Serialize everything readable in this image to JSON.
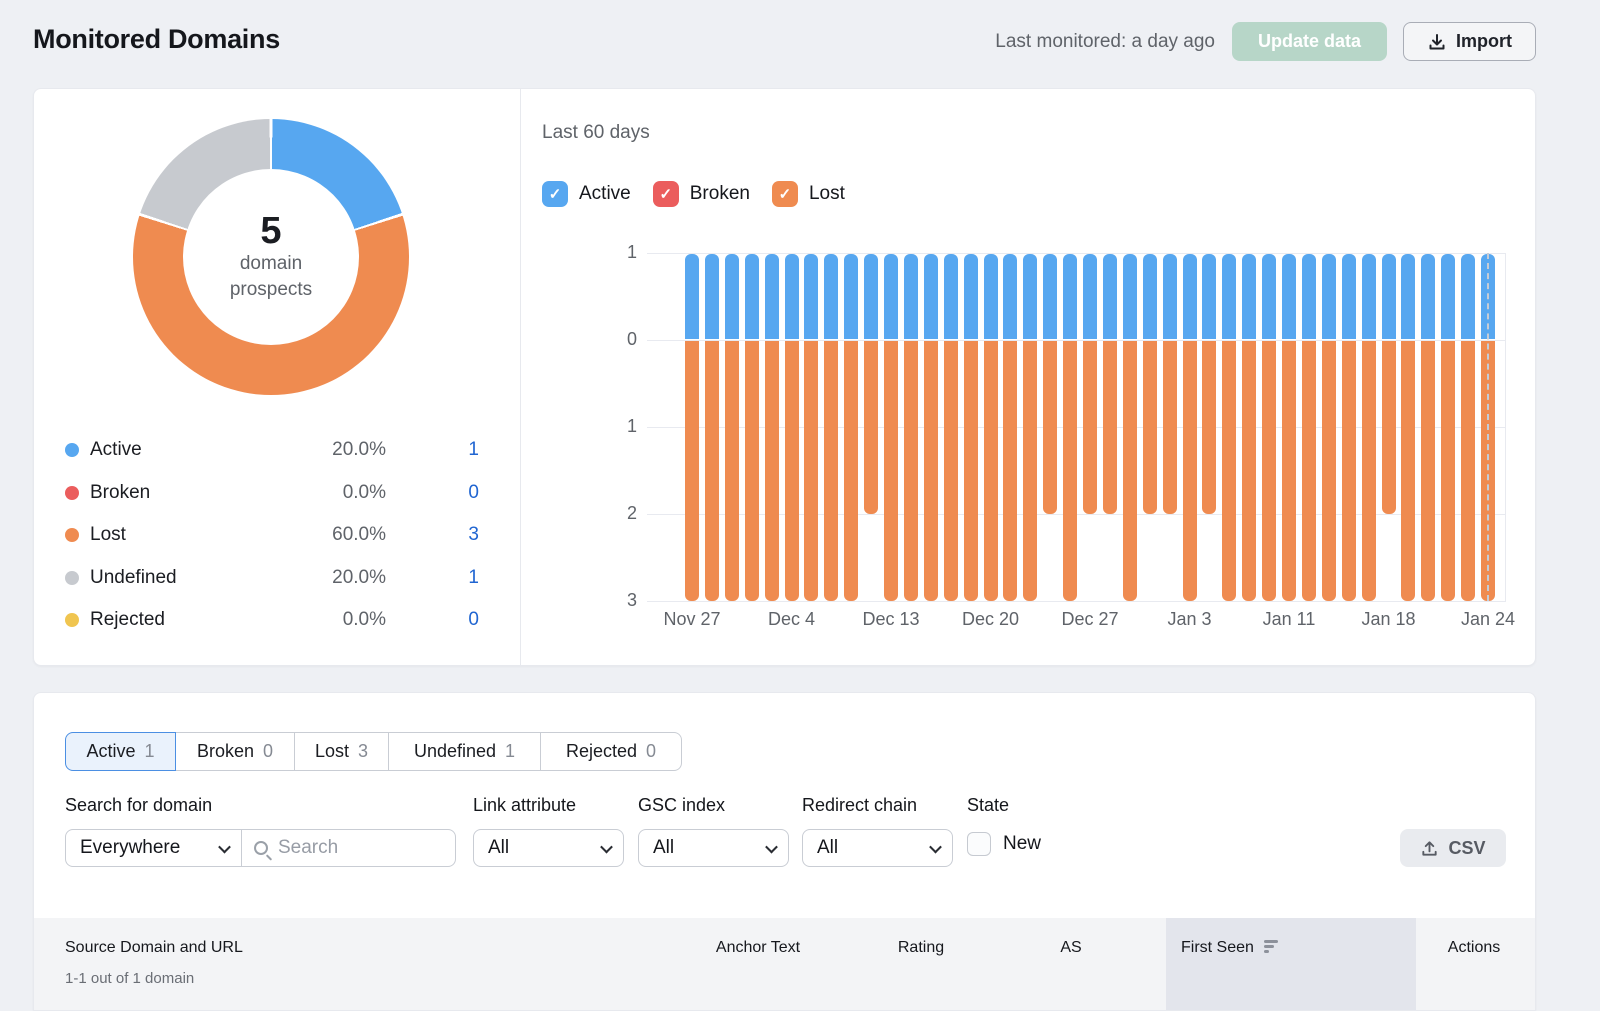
{
  "header": {
    "title": "Monitored Domains",
    "last_monitored": "Last monitored: a day ago",
    "update_button": "Update data",
    "import_button": "Import"
  },
  "overview": {
    "total_value": "5",
    "total_caption_line1": "domain",
    "total_caption_line2": "prospects",
    "legend": [
      {
        "label": "Active",
        "percent": "20.0%",
        "count": "1",
        "color": "#57a7f0"
      },
      {
        "label": "Broken",
        "percent": "0.0%",
        "count": "0",
        "color": "#eb5d5d"
      },
      {
        "label": "Lost",
        "percent": "60.0%",
        "count": "3",
        "color": "#ef8b50"
      },
      {
        "label": "Undefined",
        "percent": "20.0%",
        "count": "1",
        "color": "#c7cacf"
      },
      {
        "label": "Rejected",
        "percent": "0.0%",
        "count": "0",
        "color": "#f0c550"
      }
    ]
  },
  "trend": {
    "title": "Last 60 days",
    "toggles": [
      {
        "label": "Active",
        "color": "#57a7f0",
        "checked": true
      },
      {
        "label": "Broken",
        "color": "#eb5d5d",
        "checked": true
      },
      {
        "label": "Lost",
        "color": "#ef8b50",
        "checked": true
      }
    ]
  },
  "chart_data": [
    {
      "type": "pie",
      "title": "domain prospects",
      "total": 5,
      "slices": [
        {
          "label": "Active",
          "value": 1,
          "percent": 20.0,
          "color": "#57a7f0"
        },
        {
          "label": "Broken",
          "value": 0,
          "percent": 0.0,
          "color": "#eb5d5d"
        },
        {
          "label": "Lost",
          "value": 3,
          "percent": 60.0,
          "color": "#ef8b50"
        },
        {
          "label": "Undefined",
          "value": 1,
          "percent": 20.0,
          "color": "#c7cacf"
        },
        {
          "label": "Rejected",
          "value": 0,
          "percent": 0.0,
          "color": "#f0c550"
        }
      ]
    },
    {
      "type": "bar",
      "stacked": true,
      "mirrored_axis": true,
      "title": "Last 60 days",
      "x_tick_labels": [
        "Nov 27",
        "Dec 4",
        "Dec 13",
        "Dec 20",
        "Dec 27",
        "Jan 3",
        "Jan 11",
        "Jan 18",
        "Jan 24"
      ],
      "x_tick_bar_indices": [
        0,
        5,
        10,
        15,
        20,
        25,
        30,
        35,
        40
      ],
      "y_axis": {
        "up_max": 1,
        "down_max": 3,
        "tick_labels": [
          "1",
          "0",
          "1",
          "2",
          "3"
        ]
      },
      "today_marker_bar_index": 40,
      "series": [
        {
          "name": "Active",
          "color": "#57a7f0",
          "direction": "up",
          "values": [
            1,
            1,
            1,
            1,
            1,
            1,
            1,
            1,
            1,
            1,
            1,
            1,
            1,
            1,
            1,
            1,
            1,
            1,
            1,
            1,
            1,
            1,
            1,
            1,
            1,
            1,
            1,
            1,
            1,
            1,
            1,
            1,
            1,
            1,
            1,
            1,
            1,
            1,
            1,
            1,
            1
          ]
        },
        {
          "name": "Broken",
          "color": "#eb5d5d",
          "direction": "down",
          "values": [
            0,
            0,
            0,
            0,
            0,
            0,
            0,
            0,
            0,
            0,
            0,
            0,
            0,
            0,
            0,
            0,
            0,
            0,
            0,
            0,
            0,
            0,
            0,
            0,
            0,
            0,
            0,
            0,
            0,
            0,
            0,
            0,
            0,
            0,
            0,
            0,
            0,
            0,
            0,
            0,
            0
          ]
        },
        {
          "name": "Lost",
          "color": "#ef8b50",
          "direction": "down",
          "values": [
            3,
            3,
            3,
            3,
            3,
            3,
            3,
            3,
            3,
            2,
            3,
            3,
            3,
            3,
            3,
            3,
            3,
            3,
            2,
            3,
            2,
            2,
            3,
            2,
            2,
            3,
            2,
            3,
            3,
            3,
            3,
            3,
            3,
            3,
            3,
            2,
            3,
            3,
            3,
            3,
            3
          ]
        }
      ]
    }
  ],
  "tabs": [
    {
      "label": "Active",
      "count": "1",
      "selected": true
    },
    {
      "label": "Broken",
      "count": "0",
      "selected": false
    },
    {
      "label": "Lost",
      "count": "3",
      "selected": false
    },
    {
      "label": "Undefined",
      "count": "1",
      "selected": false
    },
    {
      "label": "Rejected",
      "count": "0",
      "selected": false
    }
  ],
  "filters": {
    "search_label": "Search for domain",
    "scope_value": "Everywhere",
    "search_placeholder": "Search",
    "selects": [
      {
        "label": "Link attribute",
        "value": "All"
      },
      {
        "label": "GSC index",
        "value": "All"
      },
      {
        "label": "Redirect chain",
        "value": "All"
      }
    ],
    "state_label": "State",
    "state_checkbox_label": "New",
    "state_checked": false,
    "csv_button": "CSV"
  },
  "table": {
    "pagination_note": "1-1 out of 1 domain",
    "columns": [
      {
        "label": "Source Domain and URL",
        "sorted": false
      },
      {
        "label": "Anchor Text",
        "sorted": false
      },
      {
        "label": "Rating",
        "sorted": false
      },
      {
        "label": "AS",
        "sorted": false
      },
      {
        "label": "First Seen",
        "sorted": true
      },
      {
        "label": "Actions",
        "sorted": false
      }
    ]
  }
}
